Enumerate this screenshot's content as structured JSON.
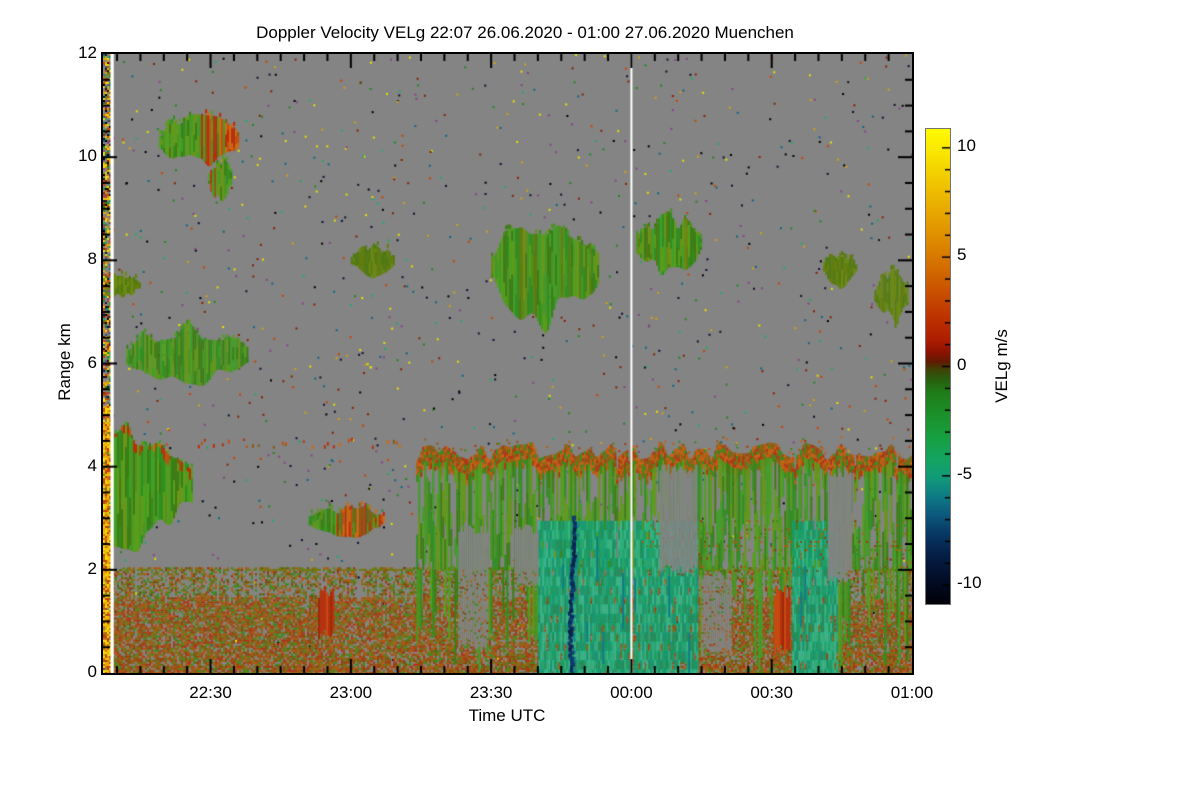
{
  "chart_data": {
    "type": "heatmap",
    "title": "Doppler Velocity VELg   22:07 26.06.2020 - 01:00 27.06.2020 Muenchen",
    "station": "Muenchen",
    "xlabel": "Time UTC",
    "ylabel": "Range km",
    "x_range": [
      "22:07 26.06.2020",
      "01:00 27.06.2020"
    ],
    "x_span_minutes": 173,
    "x_ticks": [
      {
        "t": 23,
        "label": "22:30"
      },
      {
        "t": 53,
        "label": "23:00"
      },
      {
        "t": 83,
        "label": "23:30"
      },
      {
        "t": 113,
        "label": "00:00"
      },
      {
        "t": 143,
        "label": "00:30"
      },
      {
        "t": 173,
        "label": "01:00"
      }
    ],
    "x_minor_step_minutes": 5,
    "y_range_km": [
      0,
      12
    ],
    "y_ticks": [
      {
        "km": 0,
        "label": "0"
      },
      {
        "km": 2,
        "label": "2"
      },
      {
        "km": 4,
        "label": "4"
      },
      {
        "km": 6,
        "label": "6"
      },
      {
        "km": 8,
        "label": "8"
      },
      {
        "km": 10,
        "label": "10"
      },
      {
        "km": 12,
        "label": "12"
      }
    ],
    "y_minor_step_km": 0.5,
    "colorbar": {
      "label": "VELg m/s",
      "vmin": -10.86,
      "vmax": 10.86,
      "minor_step": 1,
      "ticks": [
        {
          "v": 10,
          "label": "10"
        },
        {
          "v": 5,
          "label": "5"
        },
        {
          "v": 0,
          "label": "0"
        },
        {
          "v": -5,
          "label": "-5"
        },
        {
          "v": -10,
          "label": "-10"
        }
      ],
      "stops": [
        [
          0.0,
          "#fffb00"
        ],
        [
          0.05,
          "#f9e600"
        ],
        [
          0.13,
          "#eebd00"
        ],
        [
          0.21,
          "#e29700"
        ],
        [
          0.28,
          "#d67300"
        ],
        [
          0.34,
          "#c95200"
        ],
        [
          0.4,
          "#bd3100"
        ],
        [
          0.445,
          "#ad1d00"
        ],
        [
          0.47,
          "#8c1200"
        ],
        [
          0.49,
          "#611b03"
        ],
        [
          0.505,
          "#414106"
        ],
        [
          0.525,
          "#2b5c0e"
        ],
        [
          0.555,
          "#1f7d19"
        ],
        [
          0.6,
          "#1c9029"
        ],
        [
          0.65,
          "#17a042"
        ],
        [
          0.7,
          "#14a464"
        ],
        [
          0.735,
          "#119a79"
        ],
        [
          0.775,
          "#0e7a86"
        ],
        [
          0.81,
          "#0c5b7d"
        ],
        [
          0.85,
          "#083a66"
        ],
        [
          0.895,
          "#051f47"
        ],
        [
          0.945,
          "#030e29"
        ],
        [
          1.0,
          "#010107"
        ]
      ]
    },
    "colors": {
      "no_signal_gray": "#848484",
      "separator_white": "#ffffff",
      "frame_black": "#000000"
    },
    "palettes": {
      "green_cloud": [
        "#2f8f1f",
        "#3f9f27",
        "#54a01c",
        "#3d7d14",
        "#67961a",
        "#4a9422"
      ],
      "olive_cloud": [
        "#5d7c10",
        "#6b8a14",
        "#4f7a12",
        "#647f0e"
      ],
      "red_accent": [
        "#c05010",
        "#b03510",
        "#d06a10",
        "#8a5a10",
        "#c22808"
      ],
      "edge_orange": [
        "#c05a10",
        "#b03510",
        "#96600e",
        "#8a5a10",
        "#3a8a1a",
        "#c96212"
      ],
      "teal": [
        "#16a06b",
        "#1ea877",
        "#2bb285",
        "#129a78",
        "#36b88f",
        "#1d9060"
      ],
      "band": [
        "#6e7a10",
        "#6e7a10",
        "#b05a10",
        "#b05a10",
        "#b05a10",
        "#3a8a1a",
        "#3a8a1a",
        "#7a4a0a",
        "#a03010",
        "#557010"
      ],
      "band_low": [
        "#b05a10",
        "#a85410",
        "#8a4a0a",
        "#6e7a10",
        "#3a8a1a",
        "#b03010",
        "#9a5210"
      ],
      "navy": [
        "#0a2050",
        "#0c2a60",
        "#123a70"
      ],
      "profile": [
        "#e8a800",
        "#f0c800",
        "#d07010",
        "#c04010",
        "#f0e000"
      ],
      "speckle": [
        "#d4a017",
        "#e8e000",
        "#cc4400",
        "#228822",
        "#116688",
        "#111133",
        "#882200",
        "#22aa66",
        "#000000",
        "#884488"
      ]
    },
    "features": [
      {
        "kind": "background_speckle",
        "count": 1400,
        "desc": "sparse multicolour noise pixels over gray no-signal field"
      },
      {
        "kind": "cloud",
        "t": [
          12,
          29
        ],
        "h": [
          9.85,
          10.75
        ],
        "palette": "green_cloud",
        "accent": {
          "palette": "red_accent",
          "from": 0.5,
          "p": 0.75
        },
        "vel": "-2 to +4 m/s",
        "desc": "mid-level cloud 22:19-22:36, updraft (red) on right flank"
      },
      {
        "kind": "cloud",
        "t": [
          22.5,
          27.5
        ],
        "h": [
          9.25,
          9.95
        ],
        "palette": "green_cloud",
        "accent": {
          "palette": "red_accent",
          "from": 0.0,
          "p": 0.35
        },
        "vel": "-1 to +2 m/s",
        "desc": "tail below 10 km cloud"
      },
      {
        "kind": "cloud",
        "t": [
          0,
          8
        ],
        "h": [
          7.3,
          7.75
        ],
        "palette": "olive_cloud",
        "flat_left": true,
        "vel": "-0.5 to +0.5 m/s",
        "desc": "thin layer at 7.5 km at start"
      },
      {
        "kind": "cloud",
        "t": [
          5,
          31
        ],
        "h": [
          5.65,
          6.65
        ],
        "palette": "green_cloud",
        "vel": "-2 to 0 m/s",
        "desc": "cloud layer near 6 km, 22:12-22:38"
      },
      {
        "kind": "cloud",
        "t": [
          53,
          62
        ],
        "h": [
          7.75,
          8.25
        ],
        "palette": "olive_cloud",
        "vel": "-0.5 to +0.5 m/s",
        "desc": "small patch near 8 km ~23:03"
      },
      {
        "kind": "cloud",
        "t": [
          83,
          106
        ],
        "h": [
          6.95,
          8.75
        ],
        "palette": "green_cloud",
        "accent": {
          "palette": "olive_cloud",
          "from": 0.0,
          "p": 0.3
        },
        "vel": "-2 to +1 m/s",
        "desc": "cloud deck 7-8.7 km, 23:30-23:53"
      },
      {
        "kind": "cloud",
        "t": [
          114,
          128
        ],
        "h": [
          7.85,
          8.8
        ],
        "palette": "green_cloud",
        "accent": {
          "palette": "olive_cloud",
          "from": 0.0,
          "p": 0.3
        },
        "vel": "-2 to +0.5 m/s",
        "desc": "cloud 8-8.8 km just after 00:00"
      },
      {
        "kind": "cloud",
        "t": [
          154,
          161
        ],
        "h": [
          7.55,
          8.15
        ],
        "palette": "olive_cloud",
        "vel": "-0.5 m/s",
        "desc": "slanted patch ~00:42"
      },
      {
        "kind": "cloud",
        "t": [
          165,
          172
        ],
        "h": [
          6.85,
          7.8
        ],
        "palette": "olive_cloud",
        "vel": "-0.5 m/s",
        "desc": "slanted patch ~00:53"
      },
      {
        "kind": "cloud",
        "t": [
          0,
          19
        ],
        "h": [
          2.6,
          4.65
        ],
        "palette": "green_cloud",
        "flat_left": true,
        "top_accent": "red_accent",
        "vel": "-3 to +3 m/s",
        "desc": "precipitating cell at start, red top edge ~4.5 km"
      },
      {
        "kind": "dotted_top",
        "t": [
          19,
          64
        ],
        "h": [
          4.4,
          4.6
        ],
        "vel": "+1 to +4 m/s",
        "desc": "dotted cloud-base line near 4.5 km"
      },
      {
        "kind": "cloud",
        "t": [
          44,
          60
        ],
        "h": [
          2.7,
          3.2
        ],
        "palette": "green_cloud",
        "accent": {
          "palette": "red_accent",
          "from": 0.35,
          "p": 0.7
        },
        "vel": "-2 to +4 m/s",
        "desc": "thin layer 2.9 km ~23:00 with red core"
      },
      {
        "kind": "noise_band",
        "t": [
          0,
          173
        ],
        "h": [
          0,
          2.05
        ],
        "vel": "-3 to +4 m/s",
        "desc": "speckled boundary-layer band below 2 km, orange-dominated below 1.5 km"
      },
      {
        "kind": "precip_main",
        "t": [
          67,
          173
        ],
        "h": [
          0,
          4.6
        ],
        "vel": "edge +1..+5, green streaks -1..-3, teal downdrafts -4..-6 m/s",
        "teal": [
          [
            93,
            113
          ],
          [
            113.5,
            127
          ],
          [
            147,
            157
          ]
        ],
        "holes": [
          [
            76,
            82,
            0.4,
            2.9
          ],
          [
            88,
            93,
            1.6,
            2.9
          ],
          [
            119,
            127,
            1.9,
            4.05
          ],
          [
            128,
            134,
            0.3,
            2.0
          ],
          [
            155,
            160,
            1.7,
            4.0
          ]
        ],
        "desc": "main precipitation 23:14-01:00, ragged orange cloud base 4.2-4.5 km, fall streaks to ground"
      },
      {
        "kind": "navy_streak",
        "t": [
          99.3,
          101.3
        ],
        "h": [
          0,
          3.05
        ],
        "vel": "-8 to -9 m/s",
        "desc": "strong dark-blue downdraft streak ~23:47"
      },
      {
        "kind": "red_streak",
        "t": [
          46,
          49
        ],
        "h": [
          0.6,
          1.7
        ],
        "vel": "+2 to +5 m/s"
      },
      {
        "kind": "red_streak",
        "t": [
          143.5,
          146.5
        ],
        "h": [
          0.3,
          1.7
        ],
        "vel": "+2 to +5 m/s"
      },
      {
        "kind": "profile_column",
        "t": [
          0,
          1.6
        ],
        "h": [
          0,
          12
        ],
        "vel": "+3 to +9 m/s below 5 km",
        "desc": "first measured profile at 22:07, strong orange/yellow"
      },
      {
        "kind": "data_gap",
        "t": [
          1.6,
          2.3
        ],
        "desc": "white gap column after first profile"
      },
      {
        "kind": "midnight_line",
        "t": 113,
        "desc": "white vertical separator at 00:00"
      }
    ]
  }
}
